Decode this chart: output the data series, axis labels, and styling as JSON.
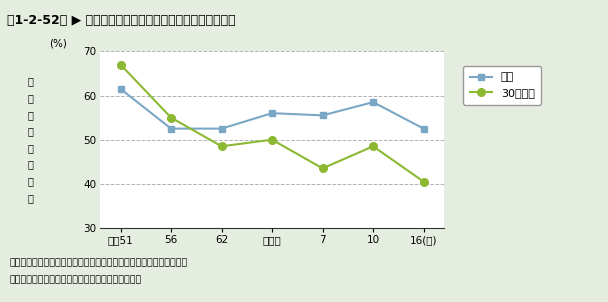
{
  "title": "第1-2-52図 ▶ 科学技術についてのニュースや話題への関心",
  "x_labels": [
    "昭和51",
    "56",
    "62",
    "平成２",
    "7",
    "10",
    "16(年)"
  ],
  "x_positions": [
    0,
    1,
    2,
    3,
    4,
    5,
    6
  ],
  "zentai_values": [
    61.5,
    52.5,
    52.5,
    56.0,
    55.5,
    58.5,
    52.5
  ],
  "under30_values": [
    67.0,
    55.0,
    48.5,
    50.0,
    43.5,
    48.5,
    40.5
  ],
  "ylim": [
    30,
    70
  ],
  "yticks": [
    30,
    40,
    50,
    60,
    70
  ],
  "ylabel_chars": [
    "関",
    "心",
    "を",
    "有",
    "す",
    "る",
    "割",
    "合"
  ],
  "ylabel_unit": "(%)",
  "zentai_color": "#7ba7c7",
  "under30_color": "#8cb832",
  "legend_zentai": "全体",
  "legend_under30": "30歳未満",
  "note1": "注）「関心がある」又は「ある程度関心がある」と回答した者の割合",
  "note2": "資料：内閣府「科学技術と社会に関する世論調査」",
  "bg_color": "#e5ede0",
  "plot_bg_color": "#ffffff",
  "header_bg_color": "#cce6f4",
  "grid_color": "#aaaaaa",
  "bottom_bar_color": "#6fa8c8"
}
